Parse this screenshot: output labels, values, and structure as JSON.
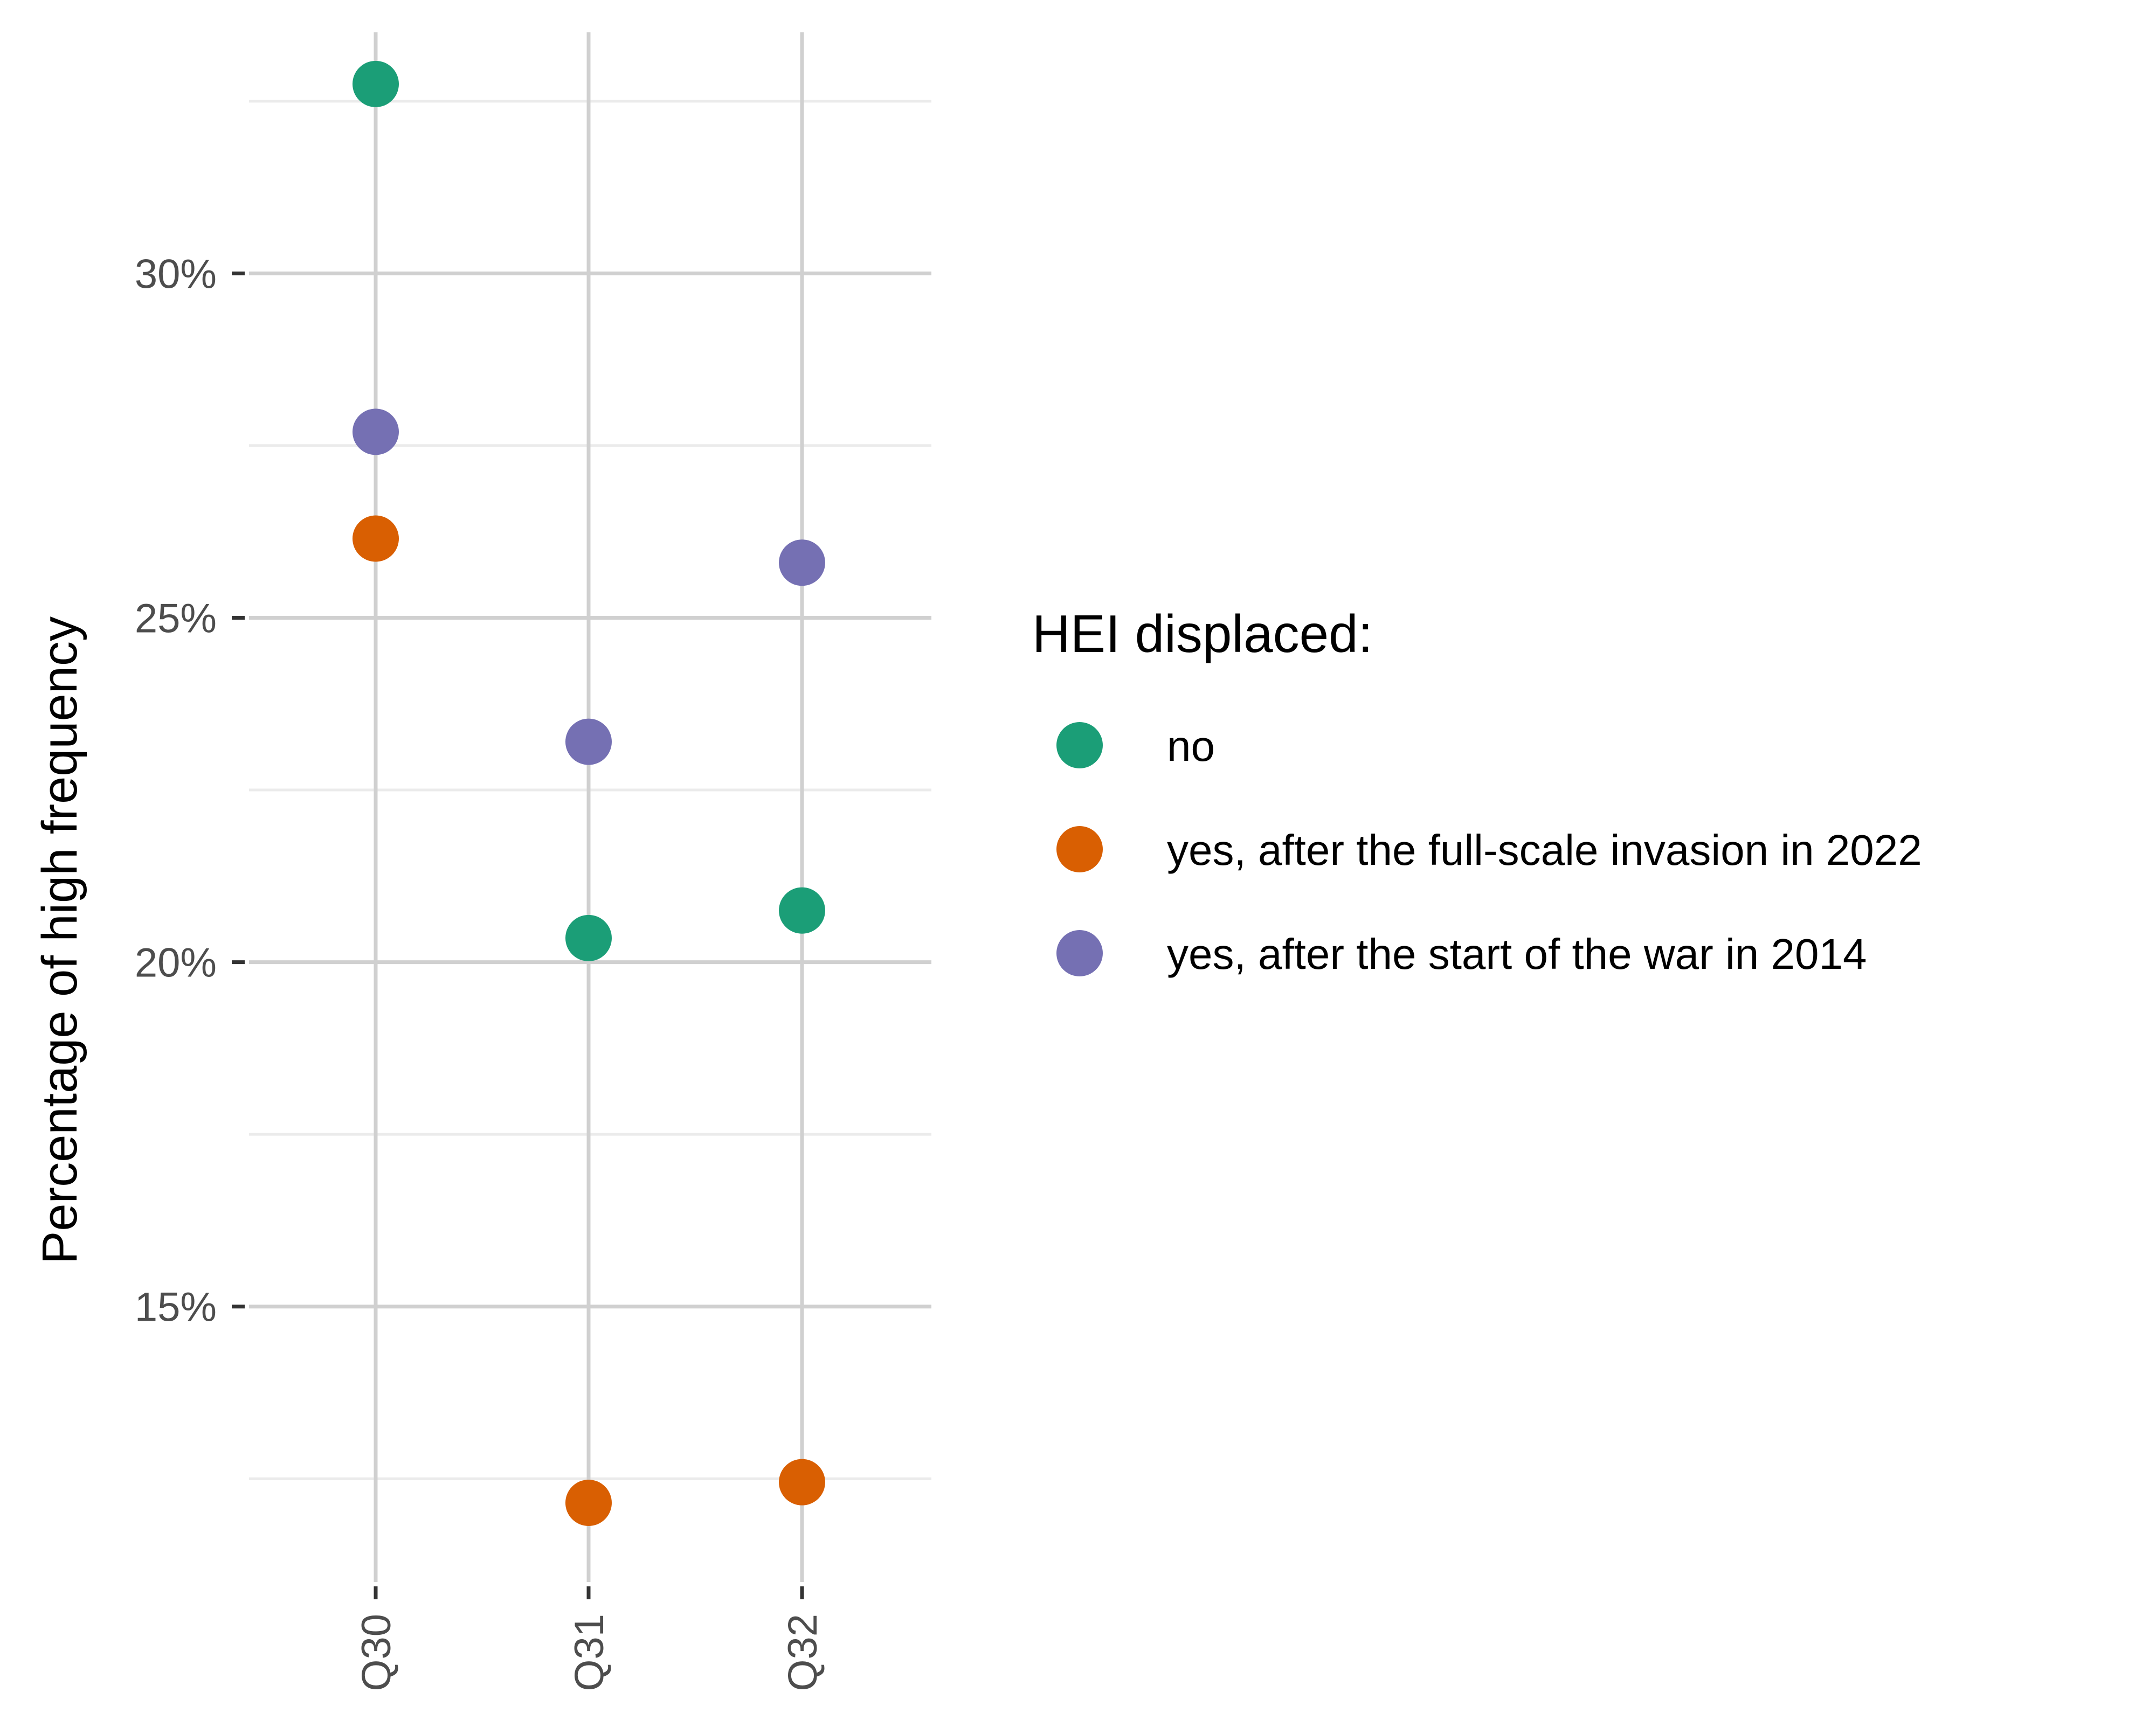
{
  "chart_data": {
    "type": "scatter",
    "title": "",
    "xlabel": "",
    "ylabel": "Percentage of high frequency",
    "categories": [
      "Q30",
      "Q31",
      "Q32"
    ],
    "ylim": [
      11,
      33.5
    ],
    "yticks": [
      15,
      20,
      25,
      30
    ],
    "ytick_labels": [
      "15%",
      "20%",
      "25%",
      "30%"
    ],
    "y_minor_ticks": [
      12.5,
      17.5,
      22.5,
      27.5,
      32.5
    ],
    "grid": true,
    "legend": {
      "title": "HEI displaced:",
      "position": "right"
    },
    "series": [
      {
        "name": "no",
        "color": "#1b9e77",
        "values": [
          32.75,
          20.35,
          20.75
        ]
      },
      {
        "name": "yes, after the full-scale invasion in 2022",
        "color": "#d95f02",
        "values": [
          26.15,
          12.15,
          12.45
        ]
      },
      {
        "name": "yes, after the start of the war in 2014",
        "color": "#7570b3",
        "values": [
          27.7,
          23.2,
          25.8
        ]
      }
    ]
  }
}
